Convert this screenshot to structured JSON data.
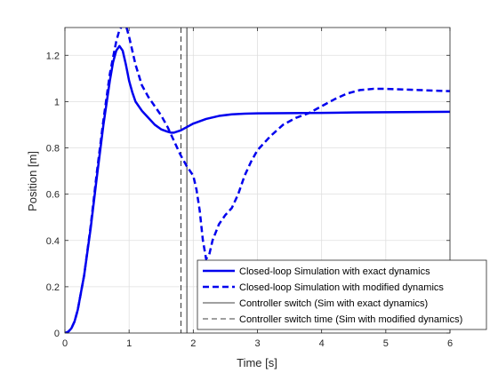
{
  "chart_data": {
    "type": "line",
    "title": "",
    "xlabel": "Time [s]",
    "ylabel": "Position [m]",
    "xlim": [
      0,
      6
    ],
    "ylim": [
      0,
      1.32
    ],
    "xticks": [
      0,
      1,
      2,
      3,
      4,
      5,
      6
    ],
    "xtick_labels": [
      "0",
      "1",
      "2",
      "3",
      "4",
      "5",
      "6"
    ],
    "yticks": [
      0,
      0.2,
      0.4,
      0.6,
      0.8,
      1.0,
      1.2
    ],
    "ytick_labels": [
      "0",
      "0.2",
      "0.4",
      "0.6",
      "0.8",
      "1",
      "1.2"
    ],
    "grid": true,
    "legend_position": "bottom-right",
    "series": [
      {
        "name": "Closed-loop Simulation with exact dynamics",
        "style": "solid",
        "x": [
          0,
          0.05,
          0.1,
          0.15,
          0.2,
          0.3,
          0.4,
          0.5,
          0.6,
          0.7,
          0.75,
          0.8,
          0.85,
          0.9,
          0.95,
          1.0,
          1.05,
          1.1,
          1.2,
          1.3,
          1.4,
          1.5,
          1.6,
          1.65,
          1.7,
          1.8,
          1.9,
          2.0,
          2.2,
          2.4,
          2.6,
          2.8,
          3.0,
          3.5,
          4.0,
          4.5,
          5.0,
          5.5,
          6.0
        ],
        "y": [
          0,
          0.005,
          0.02,
          0.05,
          0.1,
          0.25,
          0.45,
          0.68,
          0.9,
          1.09,
          1.17,
          1.22,
          1.24,
          1.22,
          1.16,
          1.09,
          1.04,
          1.0,
          0.96,
          0.93,
          0.9,
          0.88,
          0.87,
          0.866,
          0.866,
          0.875,
          0.89,
          0.905,
          0.925,
          0.938,
          0.945,
          0.948,
          0.949,
          0.95,
          0.951,
          0.953,
          0.954,
          0.955,
          0.956
        ]
      },
      {
        "name": "Closed-loop Simulation with modified dynamics",
        "style": "dashed",
        "x": [
          0,
          0.05,
          0.1,
          0.15,
          0.2,
          0.3,
          0.4,
          0.5,
          0.6,
          0.7,
          0.8,
          0.85,
          0.9,
          0.95,
          1.0,
          1.05,
          1.1,
          1.2,
          1.3,
          1.4,
          1.5,
          1.6,
          1.7,
          1.8,
          1.85,
          1.9,
          2.0,
          2.05,
          2.1,
          2.15,
          2.2,
          2.25,
          2.3,
          2.4,
          2.5,
          2.6,
          2.7,
          2.8,
          2.9,
          3.0,
          3.2,
          3.4,
          3.6,
          3.8,
          4.0,
          4.2,
          4.4,
          4.6,
          4.8,
          5.0,
          5.5,
          6.0
        ],
        "y": [
          0,
          0.005,
          0.02,
          0.05,
          0.1,
          0.25,
          0.46,
          0.7,
          0.92,
          1.12,
          1.26,
          1.31,
          1.33,
          1.33,
          1.28,
          1.22,
          1.16,
          1.07,
          1.02,
          0.98,
          0.94,
          0.89,
          0.83,
          0.77,
          0.745,
          0.72,
          0.68,
          0.62,
          0.53,
          0.4,
          0.32,
          0.34,
          0.4,
          0.47,
          0.51,
          0.54,
          0.6,
          0.68,
          0.74,
          0.79,
          0.85,
          0.9,
          0.93,
          0.95,
          0.98,
          1.01,
          1.035,
          1.05,
          1.055,
          1.055,
          1.05,
          1.045
        ]
      }
    ],
    "vlines": [
      {
        "name": "Controller switch (Sim with exact dynamics)",
        "style": "solid",
        "x": 1.9
      },
      {
        "name": "Controller switch time (Sim with modified dynamics)",
        "style": "dashed",
        "x": 1.81
      }
    ],
    "colors": {
      "series": "#0000ee",
      "vline": "#000000",
      "grid": "#dfdfdf",
      "axis": "#262626"
    }
  }
}
